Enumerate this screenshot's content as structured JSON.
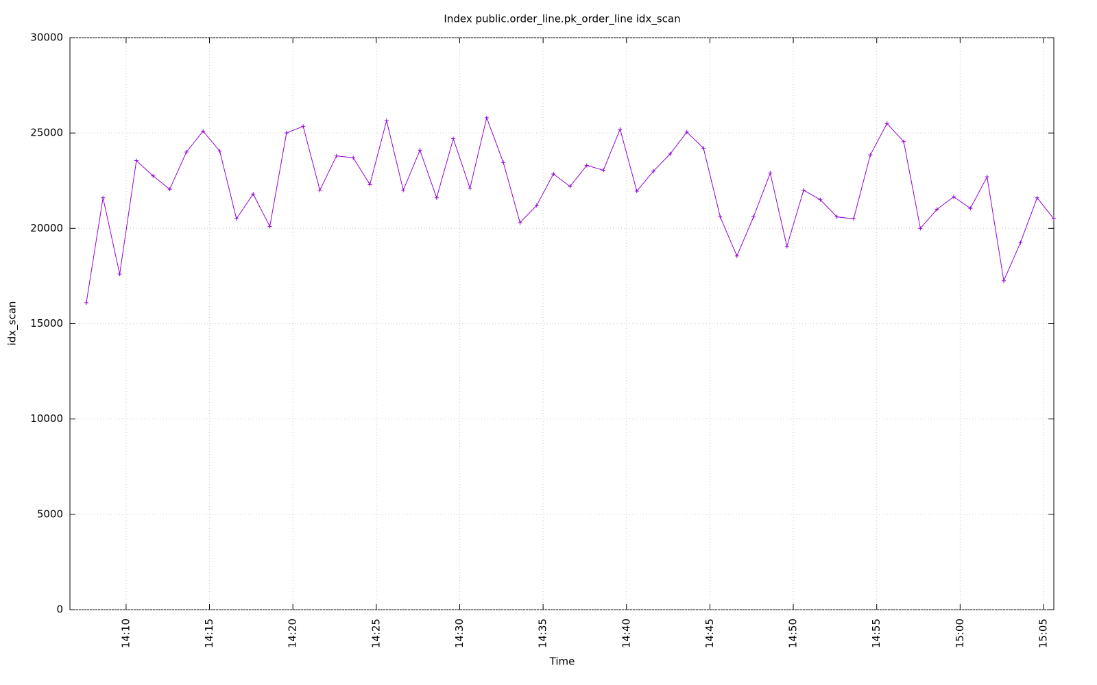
{
  "chart_data": {
    "type": "line",
    "title": "Index public.order_line.pk_order_line idx_scan",
    "x_label": "Time",
    "y_label": "idx_scan",
    "x": [
      "14:07:37",
      "14:08:37",
      "14:09:37",
      "14:10:37",
      "14:11:37",
      "14:12:37",
      "14:13:37",
      "14:14:37",
      "14:15:37",
      "14:16:37",
      "14:17:37",
      "14:18:37",
      "14:19:37",
      "14:20:37",
      "14:21:37",
      "14:22:37",
      "14:23:37",
      "14:24:37",
      "14:25:37",
      "14:26:37",
      "14:27:37",
      "14:28:37",
      "14:29:37",
      "14:30:37",
      "14:31:37",
      "14:32:37",
      "14:33:37",
      "14:34:37",
      "14:35:37",
      "14:36:37",
      "14:37:37",
      "14:38:37",
      "14:39:37",
      "14:40:37",
      "14:41:37",
      "14:42:37",
      "14:43:37",
      "14:44:37",
      "14:45:37",
      "14:46:37",
      "14:47:37",
      "14:48:37",
      "14:49:37",
      "14:50:37",
      "14:51:37",
      "14:52:37",
      "14:53:37",
      "14:54:37",
      "14:55:37",
      "14:56:37",
      "14:57:37",
      "14:58:37",
      "14:59:37",
      "15:00:37",
      "15:01:37",
      "15:02:37",
      "15:03:37",
      "15:04:37",
      "15:05:37"
    ],
    "series": [
      {
        "color": "#9400d3",
        "values": [
          16100,
          21600,
          17600,
          23550,
          22750,
          22050,
          24000,
          25100,
          24050,
          20500,
          21800,
          20100,
          25000,
          25350,
          22000,
          23800,
          23700,
          22300,
          25650,
          22000,
          24100,
          21600,
          24700,
          22100,
          25800,
          23450,
          20300,
          21200,
          22850,
          22200,
          23300,
          23050,
          25200,
          21950,
          23000,
          23900,
          25050,
          24200,
          20600,
          18550,
          20600,
          22900,
          19050,
          22000,
          21500,
          20600,
          20500,
          23850,
          25500,
          24550,
          20000,
          21000,
          21650,
          21050,
          22700,
          17250,
          19250,
          21600,
          20500
        ]
      }
    ],
    "xlim": [
      "14:06:38",
      "15:05:37"
    ],
    "xticks": [
      "14:10",
      "14:15",
      "14:20",
      "14:25",
      "14:30",
      "14:35",
      "14:40",
      "14:45",
      "14:50",
      "14:55",
      "15:00",
      "15:05"
    ],
    "ylim": [
      0,
      30000
    ],
    "yticks": [
      0,
      5000,
      10000,
      15000,
      20000,
      25000,
      30000
    ],
    "grid": true
  }
}
